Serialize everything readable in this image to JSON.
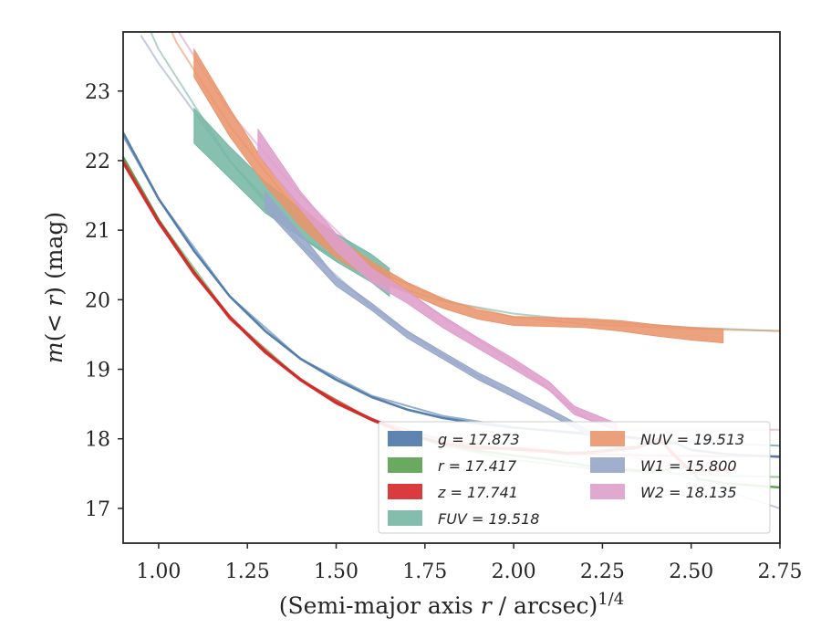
{
  "chart_data": {
    "type": "line",
    "xlabel": "(Semi-major axis r / arcsec)^1/4",
    "ylabel": "m(< r) (mag)",
    "xlim": [
      0.9,
      2.75
    ],
    "ylim": [
      23.85,
      16.5
    ],
    "y_inverted": true,
    "grid": false,
    "legend_position": "lower-right",
    "x_ticks": [
      "1.00",
      "1.25",
      "1.50",
      "1.75",
      "2.00",
      "2.25",
      "2.50",
      "2.75"
    ],
    "y_ticks": [
      "17",
      "18",
      "19",
      "20",
      "21",
      "22",
      "23"
    ],
    "series": [
      {
        "name": "g = 17.873",
        "color": "#4C78A8",
        "style": "line",
        "data": [
          [
            0.9,
            22.4
          ],
          [
            1.0,
            21.45
          ],
          [
            1.1,
            20.7
          ],
          [
            1.2,
            20.05
          ],
          [
            1.3,
            19.55
          ],
          [
            1.4,
            19.15
          ],
          [
            1.5,
            18.85
          ],
          [
            1.6,
            18.6
          ],
          [
            1.7,
            18.42
          ],
          [
            1.8,
            18.3
          ],
          [
            1.9,
            18.22
          ],
          [
            2.0,
            18.16
          ],
          [
            2.1,
            18.12
          ],
          [
            2.2,
            18.08
          ],
          [
            2.3,
            18.04
          ],
          [
            2.4,
            17.98
          ],
          [
            2.46,
            17.93
          ],
          [
            2.5,
            17.84
          ],
          [
            2.6,
            17.78
          ],
          [
            2.75,
            17.74
          ]
        ],
        "model": [
          [
            0.9,
            22.35
          ],
          [
            1.0,
            21.45
          ],
          [
            1.2,
            20.05
          ],
          [
            1.4,
            19.15
          ],
          [
            1.6,
            18.62
          ],
          [
            1.8,
            18.33
          ],
          [
            2.0,
            18.17
          ],
          [
            2.2,
            18.06
          ],
          [
            2.4,
            17.98
          ],
          [
            2.6,
            17.93
          ],
          [
            2.75,
            17.9
          ]
        ]
      },
      {
        "name": "r = 17.417",
        "color": "#59A14F",
        "style": "line",
        "data": [
          [
            0.9,
            22.05
          ],
          [
            1.0,
            21.15
          ],
          [
            1.1,
            20.4
          ],
          [
            1.2,
            19.75
          ],
          [
            1.3,
            19.25
          ],
          [
            1.4,
            18.85
          ],
          [
            1.5,
            18.52
          ],
          [
            1.6,
            18.27
          ],
          [
            1.7,
            18.07
          ],
          [
            1.8,
            17.93
          ],
          [
            1.9,
            17.83
          ],
          [
            2.0,
            17.76
          ],
          [
            2.1,
            17.7
          ],
          [
            2.2,
            17.62
          ],
          [
            2.3,
            17.56
          ],
          [
            2.4,
            17.53
          ],
          [
            2.45,
            17.57
          ],
          [
            2.49,
            17.6
          ],
          [
            2.52,
            17.42
          ],
          [
            2.6,
            17.36
          ],
          [
            2.75,
            17.3
          ]
        ],
        "model": [
          [
            0.9,
            22.05
          ],
          [
            1.0,
            21.15
          ],
          [
            1.2,
            19.75
          ],
          [
            1.4,
            18.85
          ],
          [
            1.6,
            18.27
          ],
          [
            1.8,
            17.9
          ],
          [
            2.0,
            17.7
          ],
          [
            2.2,
            17.58
          ],
          [
            2.4,
            17.51
          ],
          [
            2.6,
            17.47
          ],
          [
            2.75,
            17.45
          ]
        ]
      },
      {
        "name": "z = 17.741",
        "color": "#D62728",
        "style": "line",
        "data": [
          [
            0.9,
            21.98
          ],
          [
            1.0,
            21.12
          ],
          [
            1.1,
            20.38
          ],
          [
            1.2,
            19.75
          ],
          [
            1.3,
            19.25
          ],
          [
            1.4,
            18.85
          ],
          [
            1.5,
            18.52
          ],
          [
            1.6,
            18.28
          ],
          [
            1.7,
            18.07
          ],
          [
            1.8,
            17.93
          ],
          [
            1.9,
            17.87
          ],
          [
            2.0,
            17.86
          ],
          [
            2.1,
            17.82
          ],
          [
            2.15,
            17.79
          ],
          [
            2.2,
            17.8
          ],
          [
            2.28,
            17.84
          ],
          [
            2.35,
            17.88
          ],
          [
            2.41,
            18.0
          ],
          [
            2.45,
            17.78
          ],
          [
            2.5,
            17.53
          ],
          [
            2.62,
            17.56
          ]
        ],
        "model": [
          [
            0.9,
            21.98
          ],
          [
            1.0,
            21.1
          ],
          [
            1.2,
            19.72
          ],
          [
            1.4,
            18.84
          ],
          [
            1.6,
            18.28
          ],
          [
            1.8,
            17.98
          ],
          [
            2.0,
            17.84
          ],
          [
            2.2,
            17.78
          ],
          [
            2.4,
            17.76
          ],
          [
            2.6,
            17.75
          ],
          [
            2.75,
            17.75
          ]
        ]
      },
      {
        "name": "FUV = 19.518",
        "color": "#76B7A4",
        "style": "band",
        "upper": [
          [
            1.1,
            22.25
          ],
          [
            1.2,
            21.75
          ],
          [
            1.3,
            21.25
          ],
          [
            1.4,
            20.9
          ],
          [
            1.5,
            20.55
          ],
          [
            1.6,
            20.25
          ],
          [
            1.65,
            20.05
          ]
        ],
        "lower": [
          [
            1.1,
            22.75
          ],
          [
            1.2,
            22.2
          ],
          [
            1.3,
            21.7
          ],
          [
            1.4,
            21.3
          ],
          [
            1.5,
            20.95
          ],
          [
            1.6,
            20.65
          ],
          [
            1.65,
            20.45
          ]
        ],
        "model": [
          [
            0.92,
            24.5
          ],
          [
            1.0,
            23.6
          ],
          [
            1.2,
            22.0
          ],
          [
            1.4,
            20.9
          ],
          [
            1.6,
            20.3
          ],
          [
            1.8,
            19.98
          ],
          [
            2.0,
            19.8
          ],
          [
            2.2,
            19.7
          ],
          [
            2.5,
            19.6
          ],
          [
            2.75,
            19.55
          ]
        ]
      },
      {
        "name": "NUV = 19.513",
        "color": "#E9956C",
        "style": "band",
        "upper": [
          [
            1.1,
            23.2
          ],
          [
            1.2,
            22.35
          ],
          [
            1.3,
            21.65
          ],
          [
            1.4,
            21.05
          ],
          [
            1.5,
            20.6
          ],
          [
            1.6,
            20.3
          ],
          [
            1.7,
            20.1
          ],
          [
            1.8,
            19.88
          ],
          [
            1.9,
            19.72
          ],
          [
            2.0,
            19.63
          ],
          [
            2.2,
            19.6
          ],
          [
            2.3,
            19.55
          ],
          [
            2.4,
            19.48
          ],
          [
            2.5,
            19.42
          ],
          [
            2.59,
            19.38
          ]
        ],
        "lower": [
          [
            1.1,
            23.6
          ],
          [
            1.2,
            22.75
          ],
          [
            1.3,
            21.95
          ],
          [
            1.4,
            21.35
          ],
          [
            1.5,
            20.9
          ],
          [
            1.6,
            20.55
          ],
          [
            1.7,
            20.25
          ],
          [
            1.8,
            20.02
          ],
          [
            1.9,
            19.85
          ],
          [
            2.0,
            19.76
          ],
          [
            2.2,
            19.73
          ],
          [
            2.3,
            19.7
          ],
          [
            2.4,
            19.64
          ],
          [
            2.5,
            19.6
          ],
          [
            2.59,
            19.58
          ]
        ],
        "model": [
          [
            0.98,
            24.5
          ],
          [
            1.05,
            23.7
          ],
          [
            1.2,
            22.5
          ],
          [
            1.4,
            21.2
          ],
          [
            1.6,
            20.45
          ],
          [
            1.8,
            20.0
          ],
          [
            2.0,
            19.75
          ],
          [
            2.2,
            19.65
          ],
          [
            2.5,
            19.58
          ],
          [
            2.75,
            19.55
          ]
        ]
      },
      {
        "name": "W1 = 15.800",
        "color": "#97A6C9",
        "style": "band",
        "upper": [
          [
            1.3,
            21.3
          ],
          [
            1.4,
            20.75
          ],
          [
            1.5,
            20.2
          ],
          [
            1.6,
            19.85
          ],
          [
            1.7,
            19.45
          ],
          [
            1.8,
            19.15
          ],
          [
            1.9,
            18.85
          ],
          [
            2.0,
            18.6
          ],
          [
            2.1,
            18.35
          ],
          [
            2.2,
            18.08
          ],
          [
            2.25,
            17.93
          ]
        ],
        "lower": [
          [
            1.3,
            21.55
          ],
          [
            1.4,
            20.95
          ],
          [
            1.5,
            20.32
          ],
          [
            1.6,
            19.95
          ],
          [
            1.7,
            19.55
          ],
          [
            1.8,
            19.25
          ],
          [
            1.9,
            18.95
          ],
          [
            2.0,
            18.7
          ],
          [
            2.1,
            18.43
          ],
          [
            2.2,
            18.16
          ],
          [
            2.25,
            18.03
          ]
        ],
        "model": [
          [
            0.95,
            23.8
          ],
          [
            1.0,
            23.4
          ],
          [
            1.2,
            22.0
          ],
          [
            1.4,
            20.8
          ],
          [
            1.6,
            19.9
          ],
          [
            1.8,
            19.2
          ],
          [
            2.0,
            18.6
          ],
          [
            2.2,
            18.1
          ],
          [
            2.4,
            17.6
          ],
          [
            2.6,
            17.25
          ],
          [
            2.75,
            17.0
          ]
        ]
      },
      {
        "name": "W2 = 18.135",
        "color": "#DE9ECB",
        "style": "band",
        "upper": [
          [
            1.28,
            22.1
          ],
          [
            1.4,
            21.3
          ],
          [
            1.5,
            20.7
          ],
          [
            1.6,
            20.25
          ],
          [
            1.7,
            19.95
          ],
          [
            1.8,
            19.6
          ],
          [
            1.9,
            19.3
          ],
          [
            2.0,
            19.0
          ],
          [
            2.1,
            18.7
          ],
          [
            2.17,
            18.35
          ],
          [
            2.29,
            18.12
          ]
        ],
        "lower": [
          [
            1.28,
            22.45
          ],
          [
            1.4,
            21.55
          ],
          [
            1.5,
            20.95
          ],
          [
            1.6,
            20.45
          ],
          [
            1.7,
            20.12
          ],
          [
            1.8,
            19.77
          ],
          [
            1.9,
            19.45
          ],
          [
            2.0,
            19.15
          ],
          [
            2.1,
            18.82
          ],
          [
            2.17,
            18.47
          ],
          [
            2.29,
            18.22
          ]
        ],
        "model": [
          [
            1.0,
            24.5
          ],
          [
            1.05,
            23.9
          ],
          [
            1.2,
            22.7
          ],
          [
            1.4,
            21.5
          ],
          [
            1.6,
            20.5
          ],
          [
            1.8,
            19.75
          ],
          [
            2.0,
            19.1
          ],
          [
            2.2,
            18.3
          ],
          [
            2.3,
            18.13
          ],
          [
            2.5,
            18.13
          ],
          [
            2.75,
            18.13
          ]
        ]
      }
    ]
  }
}
